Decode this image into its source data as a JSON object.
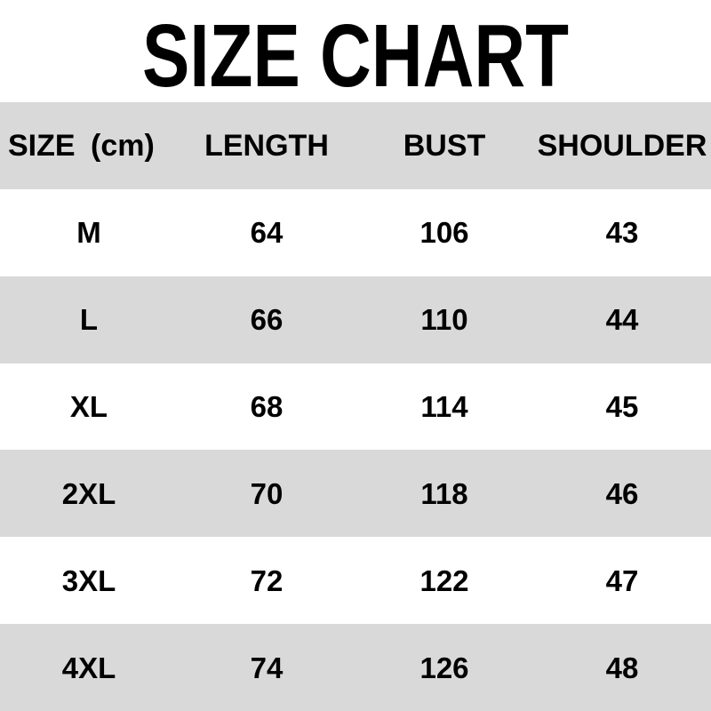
{
  "title": "SIZE CHART",
  "table": {
    "headers": {
      "size": "SIZE (cm)",
      "length": "LENGTH",
      "bust": "BUST",
      "shoulder": "SHOULDER"
    },
    "rows": [
      {
        "size": "M",
        "length": "64",
        "bust": "106",
        "shoulder": "43"
      },
      {
        "size": "L",
        "length": "66",
        "bust": "110",
        "shoulder": "44"
      },
      {
        "size": "XL",
        "length": "68",
        "bust": "114",
        "shoulder": "45"
      },
      {
        "size": "2XL",
        "length": "70",
        "bust": "118",
        "shoulder": "46"
      },
      {
        "size": "3XL",
        "length": "72",
        "bust": "122",
        "shoulder": "47"
      },
      {
        "size": "4XL",
        "length": "74",
        "bust": "126",
        "shoulder": "48"
      }
    ]
  },
  "colors": {
    "stripe_gray": "#d9d9d9",
    "background": "#ffffff",
    "text": "#000000"
  },
  "chart_data": {
    "type": "table",
    "title": "SIZE CHART",
    "units": "cm",
    "columns": [
      "SIZE (cm)",
      "LENGTH",
      "BUST",
      "SHOULDER"
    ],
    "rows": [
      [
        "M",
        64,
        106,
        43
      ],
      [
        "L",
        66,
        110,
        44
      ],
      [
        "XL",
        68,
        114,
        45
      ],
      [
        "2XL",
        70,
        118,
        46
      ],
      [
        "3XL",
        72,
        122,
        47
      ],
      [
        "4XL",
        74,
        126,
        48
      ]
    ]
  }
}
